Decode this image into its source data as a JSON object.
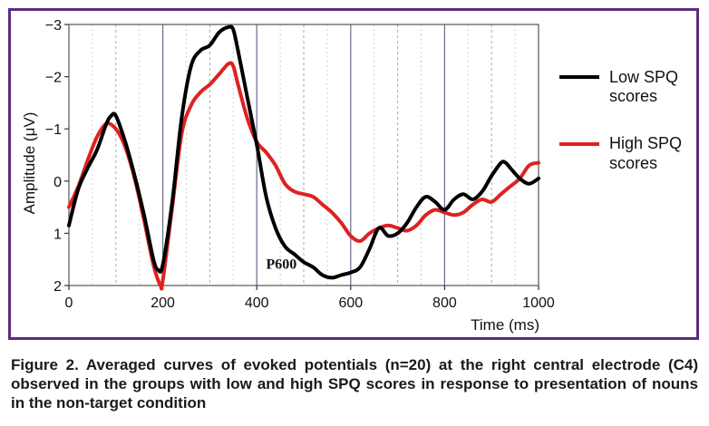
{
  "colors": {
    "frame": "#5b2d82",
    "low": "#000000",
    "high": "#dd2222",
    "grid": "#aaaaaa",
    "grid_minor": "#d0d0d0"
  },
  "caption": "Figure 2. Averaged curves of evoked potentials (n=20) at the right central electrode (C4) observed in the groups with low and high SPQ scores in response to presentation of nouns in the non-target condition",
  "chart_data": {
    "type": "line",
    "xlabel": "Time (ms)",
    "ylabel": "Amplitude (μV)",
    "xlim": [
      0,
      1000
    ],
    "ylim": [
      2,
      -3
    ],
    "y_inverted": true,
    "xticks": [
      0,
      200,
      400,
      600,
      800,
      1000
    ],
    "yticks": [
      -3,
      -2,
      -1,
      0,
      1,
      2
    ],
    "xtick_labels": [
      "0",
      "200",
      "400",
      "600",
      "800",
      "1000"
    ],
    "ytick_labels": [
      "−3",
      "−2",
      "−1",
      "0",
      "1",
      "2"
    ],
    "annotation": {
      "text": "P600",
      "x": 470,
      "y": 1.75
    },
    "grid": true,
    "legend_position": "right",
    "series": [
      {
        "name": "Low SPQ scores",
        "color": "#000000",
        "x": [
          0,
          20,
          40,
          60,
          80,
          90,
          100,
          120,
          140,
          160,
          180,
          190,
          200,
          220,
          240,
          260,
          280,
          300,
          320,
          340,
          350,
          360,
          380,
          400,
          420,
          440,
          460,
          480,
          500,
          520,
          540,
          560,
          580,
          600,
          620,
          640,
          660,
          680,
          700,
          720,
          740,
          760,
          780,
          800,
          820,
          840,
          860,
          880,
          900,
          920,
          930,
          940,
          960,
          980,
          1000
        ],
        "y": [
          0.85,
          0.15,
          -0.25,
          -0.6,
          -1.1,
          -1.25,
          -1.25,
          -0.75,
          -0.1,
          0.65,
          1.5,
          1.7,
          1.6,
          0.4,
          -1.2,
          -2.2,
          -2.5,
          -2.6,
          -2.85,
          -2.95,
          -2.9,
          -2.5,
          -1.6,
          -0.7,
          0.3,
          0.9,
          1.25,
          1.4,
          1.55,
          1.65,
          1.8,
          1.85,
          1.8,
          1.75,
          1.65,
          1.3,
          0.9,
          1.05,
          1.0,
          0.8,
          0.5,
          0.3,
          0.4,
          0.55,
          0.35,
          0.25,
          0.35,
          0.2,
          -0.1,
          -0.35,
          -0.35,
          -0.25,
          -0.05,
          0.05,
          -0.05
        ]
      },
      {
        "name": "High SPQ scores",
        "color": "#dd2222",
        "x": [
          0,
          20,
          40,
          60,
          80,
          100,
          120,
          140,
          160,
          180,
          195,
          200,
          220,
          240,
          260,
          280,
          300,
          320,
          340,
          350,
          360,
          380,
          400,
          420,
          440,
          460,
          480,
          500,
          520,
          540,
          560,
          580,
          600,
          620,
          640,
          660,
          680,
          700,
          720,
          740,
          760,
          780,
          800,
          820,
          840,
          860,
          880,
          900,
          920,
          940,
          960,
          980,
          1000
        ],
        "y": [
          0.5,
          0.1,
          -0.4,
          -0.85,
          -1.1,
          -1.0,
          -0.65,
          -0.05,
          0.75,
          1.6,
          2.0,
          1.9,
          0.5,
          -0.9,
          -1.45,
          -1.7,
          -1.85,
          -2.05,
          -2.25,
          -2.2,
          -1.85,
          -1.2,
          -0.75,
          -0.55,
          -0.3,
          0.05,
          0.2,
          0.25,
          0.3,
          0.45,
          0.6,
          0.8,
          1.05,
          1.15,
          1.0,
          0.9,
          0.85,
          0.9,
          0.95,
          0.85,
          0.65,
          0.55,
          0.6,
          0.65,
          0.6,
          0.45,
          0.35,
          0.4,
          0.25,
          0.1,
          -0.05,
          -0.3,
          -0.35
        ]
      }
    ]
  }
}
